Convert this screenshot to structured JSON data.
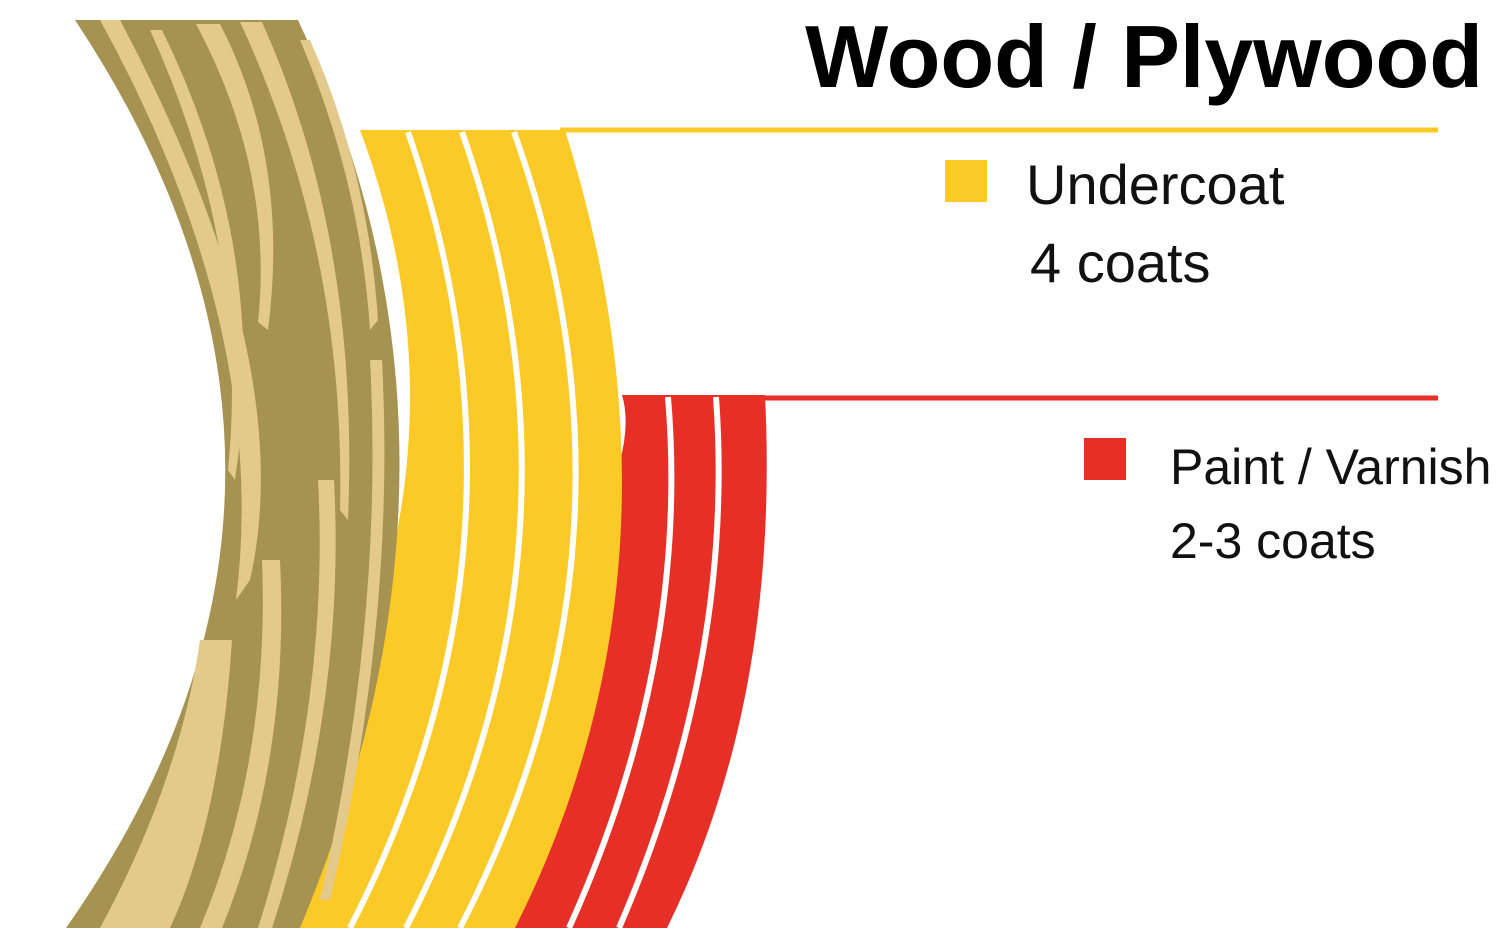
{
  "title": "Wood / Plywood",
  "colors": {
    "wood_dark": "#a69352",
    "wood_light": "#e3c98c",
    "undercoat": "#fcca26",
    "paint": "#e52f27",
    "background": "#ffffff"
  },
  "layers": [
    {
      "name": "Undercoat",
      "coats_label": "4 coats",
      "coats": 4,
      "color": "#fcca26"
    },
    {
      "name": "Paint / Varnish",
      "coats_label": "2-3 coats",
      "coats": 3,
      "color": "#e52f27"
    }
  ]
}
